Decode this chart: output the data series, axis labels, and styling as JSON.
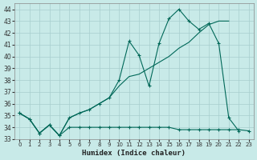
{
  "title": "",
  "xlabel": "Humidex (Indice chaleur)",
  "ylabel": "",
  "bg_color": "#c8eae8",
  "grid_color": "#a8cece",
  "line_color": "#006858",
  "x": [
    0,
    1,
    2,
    3,
    4,
    5,
    6,
    7,
    8,
    9,
    10,
    11,
    12,
    13,
    14,
    15,
    16,
    17,
    18,
    19,
    20,
    21,
    22,
    23
  ],
  "series1": [
    35.2,
    34.7,
    33.5,
    34.2,
    33.3,
    34.8,
    35.2,
    35.5,
    36.0,
    36.5,
    38.0,
    41.3,
    40.1,
    37.5,
    41.1,
    43.2,
    44.0,
    43.0,
    42.3,
    42.8,
    41.1,
    34.8,
    33.7,
    null
  ],
  "series2": [
    35.2,
    34.7,
    33.5,
    34.2,
    33.3,
    34.8,
    35.2,
    35.5,
    36.0,
    36.5,
    37.5,
    38.3,
    38.5,
    39.0,
    39.5,
    40.0,
    40.7,
    41.2,
    42.0,
    42.7,
    43.0,
    43.0,
    null,
    null
  ],
  "series3": [
    35.2,
    34.7,
    33.5,
    34.2,
    33.3,
    34.0,
    34.0,
    34.0,
    34.0,
    34.0,
    34.0,
    34.0,
    34.0,
    34.0,
    34.0,
    34.0,
    33.8,
    33.8,
    33.8,
    33.8,
    33.8,
    33.8,
    33.8,
    33.7
  ],
  "ylim": [
    33,
    44.5
  ],
  "yticks": [
    33,
    34,
    35,
    36,
    37,
    38,
    39,
    40,
    41,
    42,
    43,
    44
  ],
  "xlim": [
    -0.5,
    23.5
  ],
  "xticks": [
    0,
    1,
    2,
    3,
    4,
    5,
    6,
    7,
    8,
    9,
    10,
    11,
    12,
    13,
    14,
    15,
    16,
    17,
    18,
    19,
    20,
    21,
    22,
    23
  ]
}
